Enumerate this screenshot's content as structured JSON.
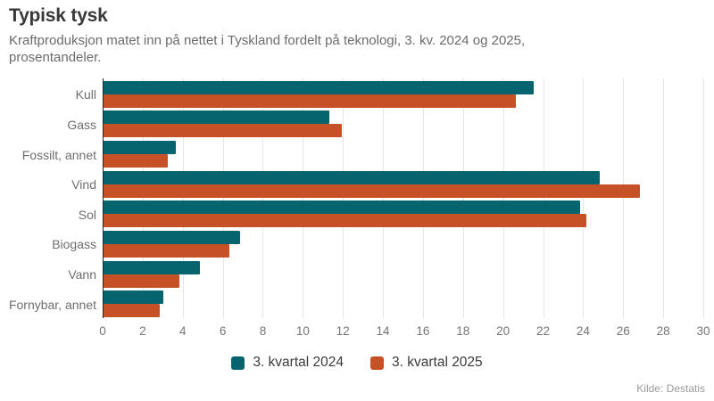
{
  "page": {
    "title": "Typisk tysk",
    "subtitle": "Kraftproduksjon matet inn på nettet i Tyskland fordelt på teknologi, 3. kv. 2024 og 2025, prosentandeler.",
    "source": "Kilde: Destatis"
  },
  "colors": {
    "accent_2024": "#05646e",
    "accent_2025": "#c65126",
    "gridline": "#e6e6e6",
    "axis_line": "#262626",
    "axis_text": "#757575",
    "title_text": "#383838",
    "subtitle_text": "#6b6b6b",
    "legend_text": "#3a3a3a",
    "source_text": "#9b9b9b"
  },
  "chart_data": {
    "type": "bar",
    "orientation": "horizontal",
    "title": "Typisk tysk",
    "subtitle": "Kraftproduksjon matet inn på nettet i Tyskland fordelt på teknologi, 3. kv. 2024 og 2025, prosentandeler.",
    "categories": [
      "Kull",
      "Gass",
      "Fossilt, annet",
      "Vind",
      "Sol",
      "Biogass",
      "Vann",
      "Fornybar, annet"
    ],
    "series": [
      {
        "name": "3. kvartal 2024",
        "color": "#05646e",
        "values": [
          21.5,
          11.3,
          3.6,
          24.8,
          23.8,
          6.8,
          4.8,
          3.0
        ]
      },
      {
        "name": "3. kvartal 2025",
        "color": "#c65126",
        "values": [
          20.6,
          11.9,
          3.2,
          26.8,
          24.1,
          6.3,
          3.8,
          2.8
        ]
      }
    ],
    "xlabel": "",
    "ylabel": "",
    "xlim": [
      0,
      30
    ],
    "x_ticks": [
      0,
      2,
      4,
      6,
      8,
      10,
      12,
      14,
      16,
      18,
      20,
      22,
      24,
      26,
      28,
      30
    ],
    "grid": "vertical",
    "legend_position": "bottom",
    "source": "Kilde: Destatis"
  }
}
